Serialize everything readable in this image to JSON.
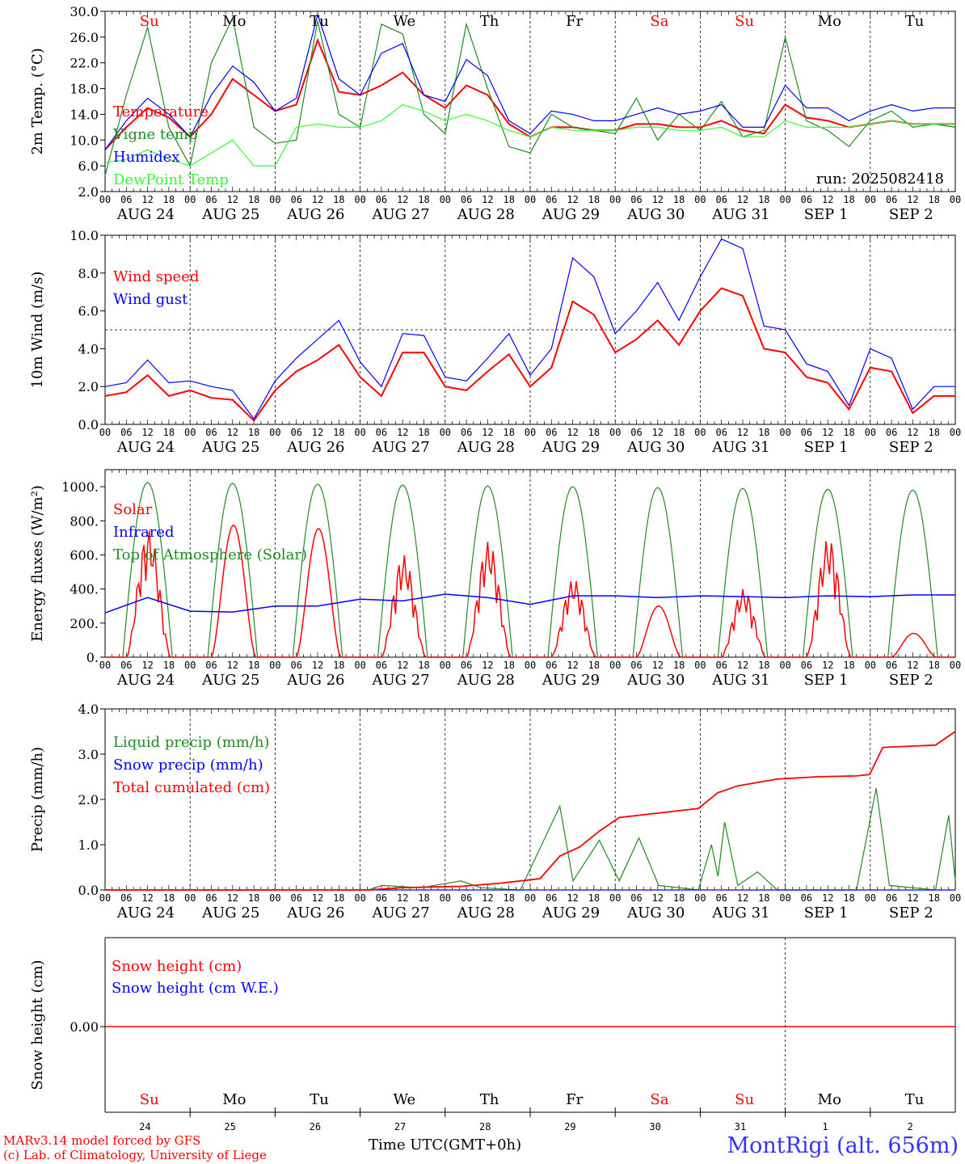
{
  "site": {
    "station": "MontRigi (alt. 656m)",
    "model": "MARv3.14 model forced by GFS",
    "credit": "(c) Lab. of Climatology, University of Liege",
    "time_label": "Time UTC(GMT+0h)",
    "run": "run: 2025082418"
  },
  "colors": {
    "red": "#ff0000",
    "green": "#228b22",
    "blue": "#0000ff",
    "lightgreen": "#33ff33",
    "weekend": "#ff0000",
    "weekday": "#000000"
  },
  "chart_data": [
    {
      "type": "line",
      "ylabel": "2m Temp. (°C)",
      "ylim": [
        2.0,
        30.0
      ],
      "yticks": [
        "2.0",
        "6.0",
        "10.0",
        "14.0",
        "18.0",
        "22.0",
        "26.0",
        "30.0"
      ],
      "weekdays": [
        "Su",
        "Mo",
        "Tu",
        "We",
        "Th",
        "Fr",
        "Sa",
        "Su",
        "Mo",
        "Tu"
      ],
      "weekend": [
        true,
        false,
        false,
        false,
        false,
        false,
        true,
        true,
        false,
        false
      ],
      "date_labels": [
        "AUG 24",
        "AUG 25",
        "AUG 26",
        "AUG 27",
        "AUG 28",
        "AUG 29",
        "AUG 30",
        "AUG 31",
        "SEP  1",
        "SEP  2"
      ],
      "hour_labels": [
        "00",
        "06",
        "12",
        "18"
      ],
      "x_hours": [
        0,
        6,
        12,
        18,
        24,
        30,
        36,
        42,
        48,
        54,
        60,
        66,
        72,
        78,
        84,
        90,
        96,
        102,
        108,
        114,
        120,
        126,
        132,
        138,
        144,
        150,
        156,
        162,
        168,
        174,
        180,
        186,
        192,
        198,
        204,
        210,
        216,
        222,
        228,
        234,
        240
      ],
      "series": [
        {
          "name": "Temperature",
          "color": "#ff0000",
          "values": [
            8.5,
            12.0,
            15.0,
            13.5,
            10.5,
            14.0,
            19.5,
            17.0,
            14.5,
            15.5,
            25.5,
            17.5,
            17.0,
            18.5,
            20.5,
            17.0,
            15.0,
            18.5,
            17.0,
            12.5,
            10.5,
            12.0,
            12.0,
            11.5,
            11.5,
            12.5,
            12.5,
            12.0,
            12.0,
            13.0,
            11.5,
            11.0,
            15.5,
            13.5,
            13.0,
            12.0,
            12.5,
            13.0,
            12.5,
            12.5,
            12.5
          ]
        },
        {
          "name": "Vigne temp",
          "color": "#228b22",
          "values": [
            4.5,
            17.0,
            27.5,
            12.0,
            6.0,
            22.0,
            29.0,
            12.0,
            9.5,
            10.0,
            28.5,
            14.0,
            12.0,
            28.0,
            26.5,
            14.0,
            11.0,
            28.0,
            18.0,
            9.0,
            8.0,
            14.0,
            12.0,
            11.5,
            11.0,
            16.5,
            10.0,
            14.0,
            11.5,
            16.0,
            10.5,
            11.5,
            26.0,
            13.0,
            11.5,
            9.0,
            13.0,
            14.5,
            12.0,
            12.5,
            12.0
          ]
        },
        {
          "name": "Humidex",
          "color": "#0000ff",
          "values": [
            8.5,
            13.0,
            16.5,
            14.0,
            10.5,
            17.0,
            21.5,
            19.0,
            14.5,
            16.5,
            29.5,
            19.5,
            17.0,
            23.5,
            25.0,
            17.0,
            16.0,
            22.5,
            20.0,
            13.0,
            11.0,
            14.5,
            14.0,
            13.0,
            13.0,
            14.0,
            15.0,
            14.0,
            14.5,
            15.5,
            12.0,
            12.0,
            18.5,
            15.0,
            15.0,
            13.0,
            14.5,
            15.5,
            14.5,
            15.0,
            15.0
          ]
        },
        {
          "name": "DewPoint Temp",
          "color": "#33ff33",
          "values": [
            6.5,
            7.0,
            8.5,
            7.0,
            6.0,
            8.0,
            10.0,
            6.0,
            6.0,
            12.0,
            12.5,
            12.0,
            12.0,
            13.0,
            15.5,
            14.5,
            13.0,
            14.0,
            13.0,
            11.5,
            10.5,
            12.0,
            11.5,
            11.5,
            11.5,
            12.0,
            12.0,
            11.5,
            11.5,
            12.0,
            10.5,
            10.5,
            13.0,
            12.0,
            12.0,
            12.0,
            12.5,
            13.0,
            12.5,
            12.5,
            12.5
          ]
        }
      ]
    },
    {
      "type": "line",
      "ylabel": "10m Wind (m/s)",
      "ylim": [
        0.0,
        10.0
      ],
      "yticks": [
        "0.0",
        "2.0",
        "4.0",
        "6.0",
        "8.0",
        "10.0"
      ],
      "reference_line": 5.0,
      "date_labels": [
        "AUG 24",
        "AUG 25",
        "AUG 26",
        "AUG 27",
        "AUG 28",
        "AUG 29",
        "AUG 30",
        "AUG 31",
        "SEP  1",
        "SEP  2"
      ],
      "x_hours": [
        0,
        6,
        12,
        18,
        24,
        30,
        36,
        42,
        48,
        54,
        60,
        66,
        72,
        78,
        84,
        90,
        96,
        102,
        108,
        114,
        120,
        126,
        132,
        138,
        144,
        150,
        156,
        162,
        168,
        174,
        180,
        186,
        192,
        198,
        204,
        210,
        216,
        222,
        228,
        234,
        240
      ],
      "series": [
        {
          "name": "Wind speed",
          "color": "#ff0000",
          "values": [
            1.5,
            1.7,
            2.6,
            1.5,
            1.8,
            1.4,
            1.3,
            0.2,
            1.8,
            2.8,
            3.4,
            4.2,
            2.5,
            1.5,
            3.8,
            3.8,
            2.0,
            1.8,
            2.8,
            3.7,
            2.0,
            3.0,
            6.5,
            5.8,
            3.8,
            4.5,
            5.5,
            4.2,
            6.0,
            7.2,
            6.8,
            4.0,
            3.8,
            2.5,
            2.2,
            0.8,
            3.0,
            2.8,
            0.6,
            1.5,
            1.5
          ]
        },
        {
          "name": "Wind gust",
          "color": "#0000ff",
          "values": [
            2.0,
            2.2,
            3.4,
            2.2,
            2.3,
            2.0,
            1.8,
            0.3,
            2.3,
            3.5,
            4.5,
            5.5,
            3.3,
            2.0,
            4.8,
            4.7,
            2.5,
            2.3,
            3.5,
            4.8,
            2.6,
            4.0,
            8.8,
            7.8,
            4.8,
            6.0,
            7.5,
            5.5,
            7.8,
            9.8,
            9.3,
            5.2,
            5.0,
            3.2,
            2.8,
            1.0,
            4.0,
            3.5,
            0.8,
            2.0,
            2.0
          ]
        }
      ]
    },
    {
      "type": "line",
      "ylabel": "Energy fluxes (W/m²)",
      "ylim": [
        0,
        1100
      ],
      "yticks": [
        "0.",
        "200.",
        "400.",
        "600.",
        "800.",
        "1000."
      ],
      "date_labels": [
        "AUG 24",
        "AUG 25",
        "AUG 26",
        "AUG 27",
        "AUG 28",
        "AUG 29",
        "AUG 30",
        "AUG 31",
        "SEP  1",
        "SEP  2"
      ],
      "series": [
        {
          "name": "Solar",
          "color": "#ff0000",
          "daily_peak": [
            750,
            775,
            755,
            600,
            680,
            460,
            300,
            400,
            700,
            140
          ]
        },
        {
          "name": "Infrared",
          "color": "#0000ff",
          "values_daily": [
            260,
            350,
            270,
            265,
            300,
            300,
            340,
            330,
            370,
            350,
            310,
            360,
            360,
            350,
            360,
            355,
            350,
            360,
            355,
            365,
            365
          ]
        },
        {
          "name": "Top of Atmosphere (Solar)",
          "color": "#228b22",
          "daily_peak": [
            1025,
            1020,
            1015,
            1010,
            1005,
            1000,
            995,
            990,
            985,
            980
          ]
        }
      ]
    },
    {
      "type": "line",
      "ylabel": "Precip (mm/h)",
      "ylim": [
        0.0,
        4.0
      ],
      "yticks": [
        "0.0",
        "1.0",
        "2.0",
        "3.0",
        "4.0"
      ],
      "date_labels": [
        "AUG 24",
        "AUG 25",
        "AUG 26",
        "AUG 27",
        "AUG 28",
        "AUG 29",
        "AUG 30",
        "AUG 31",
        "SEP  1",
        "SEP  2"
      ],
      "series": [
        {
          "name": "Liquid precip (mm/h)",
          "color": "#228b22",
          "points": [
            [
              0,
              0
            ],
            [
              80,
              0
            ],
            [
              84,
              0.1
            ],
            [
              96,
              0.05
            ],
            [
              108,
              0.2
            ],
            [
              114,
              0.05
            ],
            [
              126,
              0.0
            ],
            [
              138,
              1.85
            ],
            [
              142,
              0.2
            ],
            [
              150,
              1.1
            ],
            [
              156,
              0.2
            ],
            [
              162,
              1.15
            ],
            [
              168,
              0.1
            ],
            [
              180,
              0.0
            ],
            [
              184,
              1.0
            ],
            [
              186,
              0.3
            ],
            [
              188,
              1.5
            ],
            [
              192,
              0.1
            ],
            [
              198,
              0.4
            ],
            [
              204,
              0.0
            ],
            [
              228,
              0.0
            ],
            [
              234,
              2.25
            ],
            [
              238,
              0.1
            ],
            [
              252,
              0.0
            ],
            [
              256,
              1.65
            ],
            [
              258,
              0.2
            ]
          ]
        },
        {
          "name": "Snow precip (mm/h)",
          "color": "#0000ff",
          "points": [
            [
              0,
              0
            ],
            [
              258,
              0
            ]
          ]
        },
        {
          "name": "Total cumulated (cm)",
          "color": "#ff0000",
          "points": [
            [
              0,
              0
            ],
            [
              80,
              0
            ],
            [
              90,
              0.05
            ],
            [
              108,
              0.08
            ],
            [
              120,
              0.15
            ],
            [
              132,
              0.25
            ],
            [
              138,
              0.75
            ],
            [
              144,
              0.95
            ],
            [
              150,
              1.3
            ],
            [
              156,
              1.6
            ],
            [
              174,
              1.75
            ],
            [
              180,
              1.8
            ],
            [
              186,
              2.15
            ],
            [
              192,
              2.3
            ],
            [
              204,
              2.45
            ],
            [
              216,
              2.5
            ],
            [
              228,
              2.52
            ],
            [
              232,
              2.55
            ],
            [
              236,
              3.15
            ],
            [
              252,
              3.2
            ],
            [
              258,
              3.5
            ]
          ]
        }
      ]
    },
    {
      "type": "line",
      "ylabel": "Snow height (cm)",
      "ytick": "0.00",
      "weekdays": [
        "Su",
        "Mo",
        "Tu",
        "We",
        "Th",
        "Fr",
        "Sa",
        "Su",
        "Mo",
        "Tu"
      ],
      "weekend": [
        true,
        false,
        false,
        false,
        false,
        false,
        true,
        true,
        false,
        false
      ],
      "day_numbers": [
        "24",
        "25",
        "26",
        "27",
        "28",
        "29",
        "30",
        "31",
        "1",
        "2"
      ],
      "series": [
        {
          "name": "Snow height (cm)",
          "color": "#ff0000",
          "value": 0.0
        },
        {
          "name": "Snow height (cm W.E.)",
          "color": "#0000ff",
          "value": 0.0
        }
      ]
    }
  ]
}
